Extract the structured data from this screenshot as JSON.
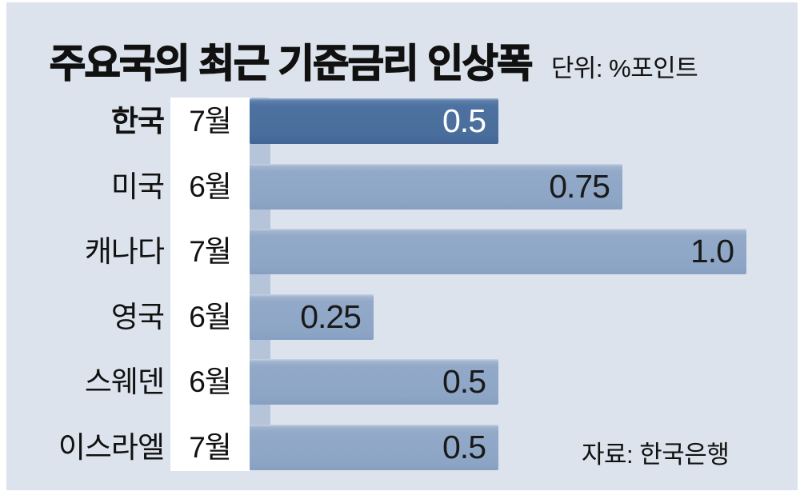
{
  "title": {
    "text": "주요국의 최근 기준금리 인상폭",
    "unit": "단위: %포인트"
  },
  "source": "자료: 한국은행",
  "chart_data": {
    "type": "bar",
    "orientation": "horizontal",
    "title": "주요국의 최근 기준금리 인상폭",
    "unit_label": "단위: %포인트",
    "source": "자료: 한국은행",
    "xlim": [
      0,
      1.0
    ],
    "grid": false,
    "legend": null,
    "categories": [
      "한국",
      "미국",
      "캐나다",
      "영국",
      "스웨덴",
      "이스라엘"
    ],
    "rows": [
      {
        "country": "한국",
        "month": "7월",
        "value": 0.5,
        "label": "0.5",
        "highlighted": true
      },
      {
        "country": "미국",
        "month": "6월",
        "value": 0.75,
        "label": "0.75",
        "highlighted": false
      },
      {
        "country": "캐나다",
        "month": "7월",
        "value": 1.0,
        "label": "1.0",
        "highlighted": false
      },
      {
        "country": "영국",
        "month": "6월",
        "value": 0.25,
        "label": "0.25",
        "highlighted": false
      },
      {
        "country": "스웨덴",
        "month": "6월",
        "value": 0.5,
        "label": "0.5",
        "highlighted": false
      },
      {
        "country": "이스라엘",
        "month": "7월",
        "value": 0.5,
        "label": "0.5",
        "highlighted": false
      }
    ],
    "colors": {
      "background": "#dce3ec",
      "bar": "#92a9c8",
      "highlight_bar": "#4d71a0",
      "label_column": "#ffffff",
      "spine": "#b5c4d9",
      "text": "#111111",
      "value_text": "#1a1a1a",
      "highlight_value_text": "#ffffff"
    }
  }
}
